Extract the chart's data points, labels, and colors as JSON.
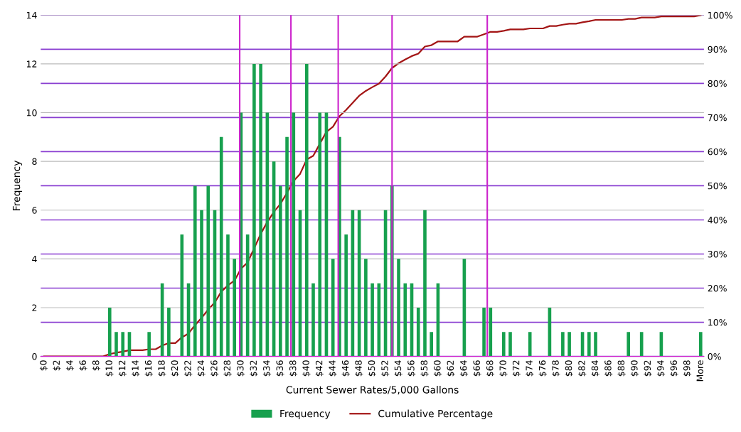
{
  "chart_data": {
    "type": "bar",
    "xlabel": "Current Sewer Rates/5,000 Gallons",
    "ylabel": "Frequency",
    "x": [
      0,
      1,
      2,
      3,
      4,
      5,
      6,
      7,
      8,
      9,
      10,
      11,
      12,
      13,
      14,
      15,
      16,
      17,
      18,
      19,
      20,
      21,
      22,
      23,
      24,
      25,
      26,
      27,
      28,
      29,
      30,
      31,
      32,
      33,
      34,
      35,
      36,
      37,
      38,
      39,
      40,
      41,
      42,
      43,
      44,
      45,
      46,
      47,
      48,
      49,
      50,
      51,
      52,
      53,
      54,
      55,
      56,
      57,
      58,
      59,
      60,
      61,
      62,
      63,
      64,
      65,
      66,
      67,
      68,
      69,
      70,
      71,
      72,
      73,
      74,
      75,
      76,
      77,
      78,
      79,
      80,
      81,
      82,
      83,
      84,
      85,
      86,
      87,
      88,
      89,
      90,
      91,
      92,
      93,
      94,
      95,
      96,
      97,
      98,
      99,
      100
    ],
    "xlim": [
      -0.5,
      100.5
    ],
    "xticks": [
      {
        "value": 0,
        "label": "$0"
      },
      {
        "value": 2,
        "label": "$2"
      },
      {
        "value": 4,
        "label": "$4"
      },
      {
        "value": 6,
        "label": "$6"
      },
      {
        "value": 8,
        "label": "$8"
      },
      {
        "value": 10,
        "label": "$10"
      },
      {
        "value": 12,
        "label": "$12"
      },
      {
        "value": 14,
        "label": "$14"
      },
      {
        "value": 16,
        "label": "$16"
      },
      {
        "value": 18,
        "label": "$18"
      },
      {
        "value": 20,
        "label": "$20"
      },
      {
        "value": 22,
        "label": "$22"
      },
      {
        "value": 24,
        "label": "$24"
      },
      {
        "value": 26,
        "label": "$26"
      },
      {
        "value": 28,
        "label": "$28"
      },
      {
        "value": 30,
        "label": "$30"
      },
      {
        "value": 32,
        "label": "$32"
      },
      {
        "value": 34,
        "label": "$34"
      },
      {
        "value": 36,
        "label": "$36"
      },
      {
        "value": 38,
        "label": "$38"
      },
      {
        "value": 40,
        "label": "$40"
      },
      {
        "value": 42,
        "label": "$42"
      },
      {
        "value": 44,
        "label": "$44"
      },
      {
        "value": 46,
        "label": "$46"
      },
      {
        "value": 48,
        "label": "$48"
      },
      {
        "value": 50,
        "label": "$50"
      },
      {
        "value": 52,
        "label": "$52"
      },
      {
        "value": 54,
        "label": "$54"
      },
      {
        "value": 56,
        "label": "$56"
      },
      {
        "value": 58,
        "label": "$58"
      },
      {
        "value": 60,
        "label": "$60"
      },
      {
        "value": 62,
        "label": "$62"
      },
      {
        "value": 64,
        "label": "$64"
      },
      {
        "value": 66,
        "label": "$66"
      },
      {
        "value": 68,
        "label": "$68"
      },
      {
        "value": 70,
        "label": "$70"
      },
      {
        "value": 72,
        "label": "$72"
      },
      {
        "value": 74,
        "label": "$74"
      },
      {
        "value": 76,
        "label": "$76"
      },
      {
        "value": 78,
        "label": "$78"
      },
      {
        "value": 80,
        "label": "$80"
      },
      {
        "value": 82,
        "label": "$82"
      },
      {
        "value": 84,
        "label": "$84"
      },
      {
        "value": 86,
        "label": "$86"
      },
      {
        "value": 88,
        "label": "$88"
      },
      {
        "value": 90,
        "label": "$90"
      },
      {
        "value": 92,
        "label": "$92"
      },
      {
        "value": 94,
        "label": "$94"
      },
      {
        "value": 96,
        "label": "$96"
      },
      {
        "value": 98,
        "label": "$98"
      },
      {
        "value": 100,
        "label": "More"
      }
    ],
    "series": [
      {
        "name": "Frequency",
        "color": "#17a04e",
        "values": [
          0,
          0,
          0,
          0,
          0,
          0,
          0,
          0,
          0,
          0,
          2,
          1,
          1,
          1,
          0,
          0,
          1,
          0,
          3,
          2,
          0,
          5,
          3,
          7,
          6,
          7,
          6,
          9,
          5,
          4,
          10,
          5,
          12,
          12,
          10,
          8,
          7,
          9,
          10,
          6,
          12,
          3,
          10,
          10,
          4,
          9,
          5,
          6,
          6,
          4,
          3,
          3,
          6,
          7,
          4,
          3,
          3,
          2,
          6,
          1,
          3,
          0,
          0,
          0,
          4,
          0,
          0,
          2,
          2,
          0,
          1,
          1,
          0,
          0,
          1,
          0,
          0,
          2,
          0,
          1,
          1,
          0,
          1,
          1,
          1,
          0,
          0,
          0,
          0,
          1,
          0,
          1,
          0,
          0,
          1,
          0,
          0,
          0,
          0,
          0,
          1
        ]
      },
      {
        "name": "Cumulative Percentage",
        "type": "line",
        "axis": "y2",
        "color": "#a31515",
        "values": [
          0,
          0,
          0,
          0,
          0,
          0,
          0,
          0,
          0,
          0,
          0.7,
          1.1,
          1.4,
          1.8,
          1.8,
          1.8,
          2.1,
          2.1,
          3.2,
          3.9,
          3.9,
          5.6,
          6.7,
          9.2,
          11.3,
          13.7,
          15.8,
          19.0,
          20.8,
          22.2,
          25.7,
          27.5,
          31.7,
          35.9,
          39.4,
          42.3,
          44.7,
          47.9,
          51.4,
          53.5,
          57.7,
          58.8,
          62.3,
          65.8,
          67.3,
          70.4,
          72.2,
          74.3,
          76.4,
          77.8,
          78.9,
          79.9,
          82.0,
          84.5,
          85.9,
          87.0,
          88.0,
          88.7,
          90.8,
          91.2,
          92.3,
          92.3,
          92.3,
          92.3,
          93.7,
          93.7,
          93.7,
          94.4,
          95.1,
          95.1,
          95.4,
          95.8,
          95.8,
          95.8,
          96.1,
          96.1,
          96.1,
          96.8,
          96.8,
          97.2,
          97.5,
          97.5,
          97.9,
          98.2,
          98.6,
          98.6,
          98.6,
          98.6,
          98.6,
          98.9,
          98.9,
          99.3,
          99.3,
          99.3,
          99.6,
          99.6,
          99.6,
          99.6,
          99.6,
          99.6,
          100
        ]
      }
    ],
    "ylim": [
      0,
      14
    ],
    "yticks": [
      0,
      2,
      4,
      6,
      8,
      10,
      12,
      14
    ],
    "y2lim": [
      0,
      100
    ],
    "y2ticks": [
      {
        "value": 0,
        "label": "0%"
      },
      {
        "value": 10,
        "label": "10%"
      },
      {
        "value": 20,
        "label": "20%"
      },
      {
        "value": 30,
        "label": "30%"
      },
      {
        "value": 40,
        "label": "40%"
      },
      {
        "value": 50,
        "label": "50%"
      },
      {
        "value": 60,
        "label": "60%"
      },
      {
        "value": 70,
        "label": "70%"
      },
      {
        "value": 80,
        "label": "80%"
      },
      {
        "value": 90,
        "label": "90%"
      },
      {
        "value": 100,
        "label": "100%"
      }
    ],
    "ref_lines": [
      {
        "axis": "x",
        "value": 29.8,
        "color": "#cc22cc"
      },
      {
        "axis": "x",
        "value": 37.6,
        "color": "#cc22cc"
      },
      {
        "axis": "x",
        "value": 44.8,
        "color": "#cc22cc"
      },
      {
        "axis": "x",
        "value": 53.0,
        "color": "#cc22cc"
      },
      {
        "axis": "x",
        "value": 67.5,
        "color": "#cc22cc"
      }
    ],
    "grid": "y",
    "legend": "bottom",
    "marker": "none",
    "line_style": "solid"
  }
}
